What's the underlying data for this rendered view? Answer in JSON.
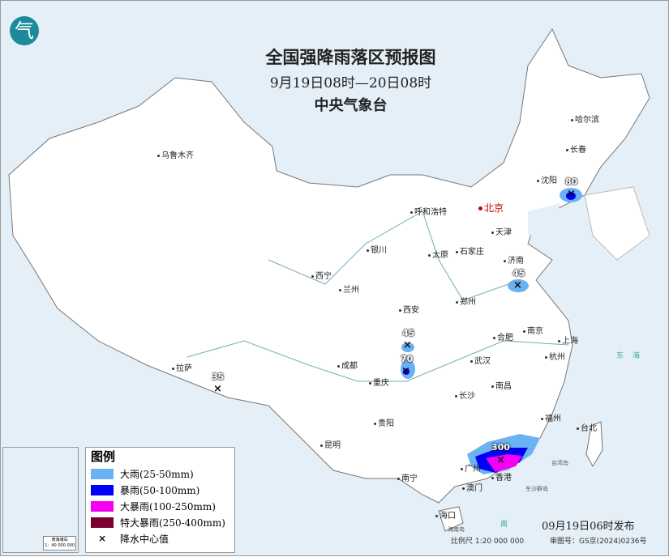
{
  "title": "全国强降雨落区预报图",
  "period": "9月19日08时—20日08时",
  "agency": "中央气象台",
  "logo_text": "气",
  "legend": {
    "title": "图例",
    "items": [
      {
        "label": "大雨(25-50mm)",
        "color": "#6ab2f4"
      },
      {
        "label": "暴雨(50-100mm)",
        "color": "#0000f5"
      },
      {
        "label": "大暴雨(100-250mm)",
        "color": "#f500f5"
      },
      {
        "label": "特大暴雨(250-400mm)",
        "color": "#7a0030"
      }
    ],
    "center_label": "降水中心值",
    "center_symbol": "×"
  },
  "cities": [
    "乌鲁木齐",
    "哈尔滨",
    "长春",
    "沈阳",
    "北京",
    "天津",
    "呼和浩特",
    "石家庄",
    "太原",
    "济南",
    "银川",
    "西宁",
    "兰州",
    "郑州",
    "西安",
    "合肥",
    "南京",
    "上海",
    "杭州",
    "武汉",
    "成都",
    "重庆",
    "拉萨",
    "长沙",
    "南昌",
    "福州",
    "台北",
    "贵阳",
    "昆明",
    "南宁",
    "广州",
    "香港",
    "澳门",
    "海口"
  ],
  "rain_centers": [
    "80",
    "45",
    "45",
    "70",
    "35",
    "300"
  ],
  "seas": [
    "东",
    "海",
    "台湾岛",
    "东沙群岛",
    "南",
    "海南岛"
  ],
  "inset": {
    "label": "南海诸岛",
    "scale": "1：40 000 000"
  },
  "issued": "09月19日06时发布",
  "scale": "比例尺  1:20 000 000",
  "approval": "审图号：GS京(2024)0236号"
}
